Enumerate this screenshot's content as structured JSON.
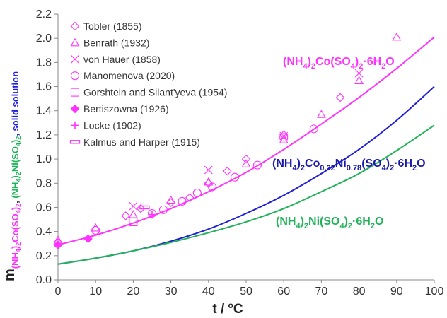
{
  "chart_data": {
    "type": "scatter",
    "xlabel": {
      "main": "t / ",
      "sup": "o",
      "unit": "C"
    },
    "ylabel": {
      "m": "m",
      "s1": "(NH",
      "s2": "4",
      "s3": ")",
      "s4": "2",
      "s5": "Co(SO",
      "s6": "4",
      "s7": ")",
      "s8": "2",
      "s9": ", ",
      "s10": "(NH",
      "s11": "4",
      "s12": ")",
      "s13": "2",
      "s14": "Ni(SO",
      "s15": "4",
      "s16": ")",
      "s17": "2",
      "s18": ", solid solution"
    },
    "xlim": [
      0,
      100
    ],
    "ylim": [
      0,
      2.2
    ],
    "xticks": [
      "0",
      "10",
      "20",
      "30",
      "40",
      "50",
      "60",
      "70",
      "80",
      "90",
      "100"
    ],
    "yticks": [
      "0.0",
      "0.2",
      "0.4",
      "0.6",
      "0.8",
      "1.0",
      "1.2",
      "1.4",
      "1.6",
      "1.8",
      "2.0",
      "2.2"
    ],
    "colors": {
      "magenta": "#ff33ff",
      "blue": "#1f1fd6",
      "green": "#22b35a",
      "darkblue": "#1a1aaa"
    },
    "legend": [
      {
        "marker": "diamond",
        "label": "Tobler (1855)"
      },
      {
        "marker": "triangle",
        "label": "Benrath (1932)"
      },
      {
        "marker": "x",
        "label": "von Hauer (1858)"
      },
      {
        "marker": "circle",
        "label": "Manomenova (2020)"
      },
      {
        "marker": "square",
        "label": "Gorshtein and Silant'yeva (1954)"
      },
      {
        "marker": "filled-diamond",
        "label": "Bertiszowna (1926)"
      },
      {
        "marker": "plus",
        "label": "Locke (1902)"
      },
      {
        "marker": "dash",
        "label": "Kalmus and Harper (1915)"
      }
    ],
    "scatter": [
      {
        "marker": "diamond",
        "points": [
          [
            0,
            0.31
          ],
          [
            18,
            0.53
          ],
          [
            22,
            0.59
          ],
          [
            30,
            0.64
          ],
          [
            35,
            0.68
          ],
          [
            40,
            0.8
          ],
          [
            45,
            0.9
          ],
          [
            50,
            1.0
          ],
          [
            60,
            1.2
          ],
          [
            75,
            1.51
          ]
        ]
      },
      {
        "marker": "triangle",
        "points": [
          [
            0,
            0.33
          ],
          [
            10,
            0.43
          ],
          [
            20,
            0.54
          ],
          [
            30,
            0.66
          ],
          [
            40,
            0.81
          ],
          [
            50,
            0.96
          ],
          [
            60,
            1.16
          ],
          [
            70,
            1.37
          ],
          [
            80,
            1.65
          ],
          [
            90,
            2.01
          ]
        ]
      },
      {
        "marker": "x",
        "points": [
          [
            20,
            0.61
          ],
          [
            40,
            0.91
          ],
          [
            60,
            1.19
          ],
          [
            80,
            1.71
          ]
        ]
      },
      {
        "marker": "circle",
        "points": [
          [
            0,
            0.3
          ],
          [
            10,
            0.41
          ],
          [
            25,
            0.55
          ],
          [
            28,
            0.58
          ],
          [
            33,
            0.65
          ],
          [
            37,
            0.72
          ],
          [
            41,
            0.77
          ],
          [
            47,
            0.85
          ],
          [
            53,
            0.95
          ],
          [
            60,
            1.18
          ],
          [
            68,
            1.25
          ]
        ]
      },
      {
        "marker": "square",
        "points": [
          [
            20,
            0.48
          ]
        ]
      },
      {
        "marker": "filled-diamond",
        "points": [
          [
            0,
            0.29
          ],
          [
            8,
            0.34
          ]
        ]
      },
      {
        "marker": "plus",
        "points": [
          [
            25,
            0.54
          ]
        ]
      },
      {
        "marker": "dash",
        "points": [
          [
            23,
            0.6
          ]
        ]
      }
    ],
    "curves": [
      {
        "color_key": "magenta",
        "points": [
          [
            0,
            0.29
          ],
          [
            10,
            0.37
          ],
          [
            20,
            0.47
          ],
          [
            30,
            0.59
          ],
          [
            40,
            0.73
          ],
          [
            50,
            0.89
          ],
          [
            60,
            1.08
          ],
          [
            70,
            1.29
          ],
          [
            80,
            1.51
          ],
          [
            90,
            1.75
          ],
          [
            100,
            2.01
          ]
        ]
      },
      {
        "color_key": "blue",
        "points": [
          [
            0,
            0.13
          ],
          [
            10,
            0.18
          ],
          [
            20,
            0.24
          ],
          [
            30,
            0.32
          ],
          [
            40,
            0.42
          ],
          [
            50,
            0.55
          ],
          [
            60,
            0.7
          ],
          [
            70,
            0.88
          ],
          [
            80,
            1.08
          ],
          [
            90,
            1.32
          ],
          [
            100,
            1.6
          ]
        ]
      },
      {
        "color_key": "green",
        "points": [
          [
            0,
            0.13
          ],
          [
            10,
            0.18
          ],
          [
            20,
            0.24
          ],
          [
            30,
            0.31
          ],
          [
            40,
            0.39
          ],
          [
            50,
            0.48
          ],
          [
            60,
            0.59
          ],
          [
            70,
            0.73
          ],
          [
            80,
            0.88
          ],
          [
            90,
            1.07
          ],
          [
            100,
            1.28
          ]
        ]
      }
    ],
    "annotations": {
      "co": {
        "p1": "(NH",
        "b1": "4",
        "p2": ")",
        "b2": "2",
        "p3": "Co(SO",
        "b3": "4",
        "p4": ")",
        "b4": "2",
        "p5": "·6H",
        "b5": "2",
        "p6": "O"
      },
      "ss": {
        "p1": "(NH",
        "b1": "4",
        "p2": ")",
        "b2": "2",
        "p3": "Co",
        "b3": "0.22",
        "p4": "Ni",
        "b4": "0.78",
        "p5": "(SO",
        "b5": "4",
        "p6": ")",
        "b6": "2",
        "p7": "·6H",
        "b7": "2",
        "p8": "O"
      },
      "ni": {
        "p1": "(NH",
        "b1": "4",
        "p2": ")",
        "b2": "2",
        "p3": "Ni(SO",
        "b3": "4",
        "p4": ")",
        "b4": "2",
        "p5": "·6H",
        "b5": "2",
        "p6": "O"
      }
    }
  }
}
